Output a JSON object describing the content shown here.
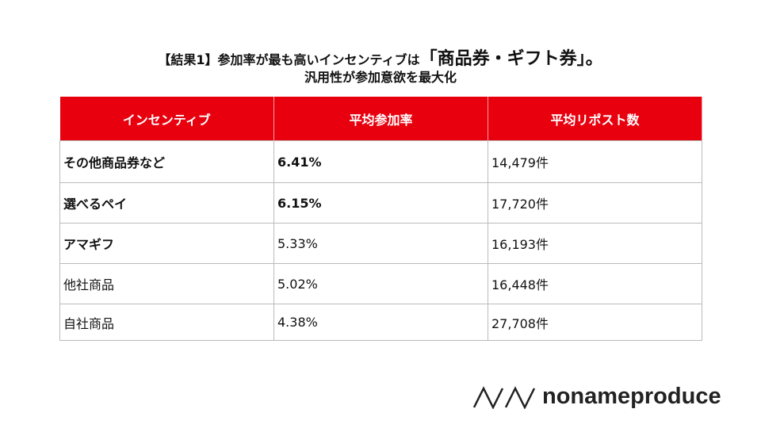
{
  "title": {
    "line1_a": "【結果1】参加率が最も高いインセンティブは",
    "line1_b": "「商品券・ギフト券」。",
    "line2": "汎用性が参加意欲を最大化"
  },
  "table": {
    "headers": [
      "インセンティブ",
      "平均参加率",
      "平均リポスト数"
    ],
    "rows": [
      {
        "name": "その他商品券など",
        "rate": "6.41%",
        "reposts": "14,479件"
      },
      {
        "name": "選べるペイ",
        "rate": "6.15%",
        "reposts": "17,720件"
      },
      {
        "name": "アマギフ",
        "rate": "5.33%",
        "reposts": "16,193件"
      },
      {
        "name": "他社商品",
        "rate": "5.02%",
        "reposts": "16,448件"
      },
      {
        "name": "自社商品",
        "rate": "4.38%",
        "reposts": "27,708件"
      }
    ]
  },
  "logo": {
    "text": "nonameproduce"
  },
  "colors": {
    "header": "#e8000e"
  }
}
